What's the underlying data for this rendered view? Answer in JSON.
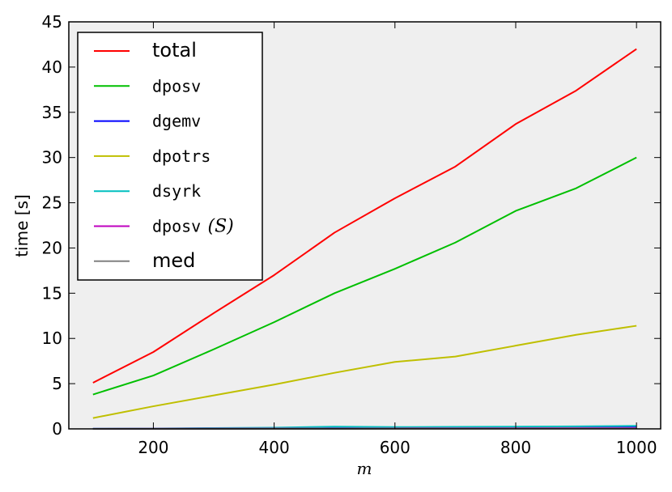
{
  "chart_data": {
    "type": "line",
    "xlabel": "m",
    "ylabel": "time [s]",
    "xlim": [
      60,
      1040
    ],
    "ylim": [
      0,
      45
    ],
    "xticks": [
      200,
      400,
      600,
      800,
      1000
    ],
    "yticks": [
      0,
      5,
      10,
      15,
      20,
      25,
      30,
      35,
      40,
      45
    ],
    "grid": false,
    "legend_position": "top-left",
    "background": "#efefef",
    "x": [
      100,
      200,
      300,
      400,
      500,
      600,
      700,
      800,
      900,
      1000
    ],
    "series": [
      {
        "name": "total",
        "font": "sans",
        "color": "#ff0000",
        "values": [
          5.1,
          8.5,
          12.8,
          17.0,
          21.7,
          25.5,
          29.0,
          33.7,
          37.4,
          42.0
        ]
      },
      {
        "name": "dposv",
        "font": "mono",
        "color": "#00bf00",
        "values": [
          3.8,
          5.9,
          8.8,
          11.8,
          15.0,
          17.7,
          20.6,
          24.1,
          26.6,
          30.0
        ]
      },
      {
        "name": "dgemv",
        "font": "mono",
        "color": "#0000ff",
        "values": [
          0.01,
          0.03,
          0.06,
          0.09,
          0.12,
          0.15,
          0.17,
          0.2,
          0.23,
          0.26
        ]
      },
      {
        "name": "dpotrs",
        "font": "mono",
        "color": "#bfbf00",
        "values": [
          1.2,
          2.5,
          3.7,
          4.9,
          6.2,
          7.4,
          8.0,
          9.2,
          10.4,
          11.4
        ]
      },
      {
        "name": "dsyrk",
        "font": "mono",
        "color": "#00bfbf",
        "values": [
          0.02,
          0.05,
          0.09,
          0.13,
          0.25,
          0.2,
          0.22,
          0.25,
          0.28,
          0.33
        ]
      },
      {
        "name": "dposv",
        "name_suffix": "(S)",
        "font": "mono",
        "color": "#bf00bf",
        "values": [
          0.01,
          0.02,
          0.03,
          0.04,
          0.05,
          0.06,
          0.07,
          0.08,
          0.09,
          0.1
        ]
      },
      {
        "name": "med",
        "font": "sans",
        "color": "#808080",
        "values": [
          0.005,
          0.01,
          0.015,
          0.02,
          0.025,
          0.03,
          0.035,
          0.04,
          0.045,
          0.05
        ]
      }
    ]
  }
}
